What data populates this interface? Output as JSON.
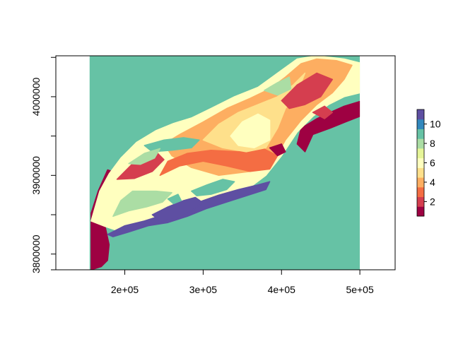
{
  "chart_data": {
    "type": "heatmap",
    "title": "",
    "xlabel": "",
    "ylabel": "",
    "xlim": [
      112000,
      545000
    ],
    "ylim": [
      3780000,
      4052000
    ],
    "raster_extent": {
      "x": [
        155000,
        500000
      ],
      "y": [
        3780000,
        4052000
      ]
    },
    "x_ticks": [
      {
        "value": 200000,
        "label": "2e+05"
      },
      {
        "value": 300000,
        "label": "3e+05"
      },
      {
        "value": 400000,
        "label": "4e+05"
      },
      {
        "value": 500000,
        "label": "5e+05"
      }
    ],
    "y_ticks": [
      {
        "value": 3800000,
        "label": "3800000"
      },
      {
        "value": 3900000,
        "label": "3900000"
      },
      {
        "value": 4000000,
        "label": "4000000"
      }
    ],
    "background_class": 9,
    "legend": {
      "placement": "right",
      "range": [
        1,
        11
      ],
      "ticks": [
        2,
        4,
        6,
        8,
        10
      ],
      "colors": [
        "#9E0142",
        "#D53E4F",
        "#F46D43",
        "#FDAE61",
        "#FEE08B",
        "#FFFFBF",
        "#E6F598",
        "#ABDDA4",
        "#66C2A5",
        "#3288BD",
        "#5E4FA2"
      ]
    },
    "regions": [
      {
        "class": 1,
        "polygon": [
          [
            157000,
            3780000
          ],
          [
            157000,
            3852000
          ],
          [
            166000,
            3880000
          ],
          [
            178000,
            3907000
          ],
          [
            184000,
            3905000
          ],
          [
            178000,
            3890000
          ],
          [
            171000,
            3860000
          ],
          [
            175000,
            3835000
          ],
          [
            180000,
            3812000
          ],
          [
            178000,
            3792000
          ],
          [
            170000,
            3784000
          ]
        ]
      },
      {
        "class": 1,
        "polygon": [
          [
            425000,
            3960000
          ],
          [
            445000,
            3972000
          ],
          [
            462000,
            3980000
          ],
          [
            480000,
            3988000
          ],
          [
            500000,
            3994000
          ],
          [
            500000,
            3975000
          ],
          [
            482000,
            3968000
          ],
          [
            462000,
            3960000
          ],
          [
            440000,
            3952000
          ],
          [
            430000,
            3930000
          ],
          [
            420000,
            3940000
          ]
        ]
      },
      {
        "class": 1,
        "polygon": [
          [
            260000,
            3952000
          ],
          [
            275000,
            3957000
          ],
          [
            290000,
            3962000
          ],
          [
            282000,
            3968000
          ],
          [
            265000,
            3964000
          ]
        ]
      },
      {
        "class": 6,
        "polygon": [
          [
            157000,
            3842000
          ],
          [
            168000,
            3880000
          ],
          [
            180000,
            3902000
          ],
          [
            195000,
            3922000
          ],
          [
            215000,
            3942000
          ],
          [
            240000,
            3957000
          ],
          [
            262000,
            3966000
          ],
          [
            285000,
            3973000
          ],
          [
            310000,
            3985000
          ],
          [
            340000,
            4000000
          ],
          [
            370000,
            4012000
          ],
          [
            395000,
            4030000
          ],
          [
            420000,
            4048000
          ],
          [
            445000,
            4052000
          ],
          [
            480000,
            4048000
          ],
          [
            500000,
            4043000
          ],
          [
            500000,
            4005000
          ],
          [
            480000,
            4000000
          ],
          [
            460000,
            3990000
          ],
          [
            440000,
            3975000
          ],
          [
            420000,
            3955000
          ],
          [
            400000,
            3925000
          ],
          [
            380000,
            3900000
          ],
          [
            340000,
            3870000
          ],
          [
            300000,
            3860000
          ],
          [
            260000,
            3852000
          ],
          [
            230000,
            3842000
          ],
          [
            205000,
            3835000
          ],
          [
            190000,
            3830000
          ],
          [
            175000,
            3835000
          ]
        ]
      },
      {
        "class": 8,
        "polygon": [
          [
            185000,
            3848000
          ],
          [
            195000,
            3868000
          ],
          [
            210000,
            3880000
          ],
          [
            240000,
            3880000
          ],
          [
            260000,
            3878000
          ],
          [
            248000,
            3866000
          ],
          [
            228000,
            3860000
          ],
          [
            205000,
            3855000
          ]
        ]
      },
      {
        "class": 4,
        "polygon": [
          [
            270000,
            3952000
          ],
          [
            300000,
            3968000
          ],
          [
            330000,
            3985000
          ],
          [
            360000,
            3998000
          ],
          [
            385000,
            4010000
          ],
          [
            405000,
            4025000
          ],
          [
            425000,
            4042000
          ],
          [
            445000,
            4048000
          ],
          [
            470000,
            4046000
          ],
          [
            490000,
            4040000
          ],
          [
            480000,
            4022000
          ],
          [
            465000,
            4005000
          ],
          [
            445000,
            3990000
          ],
          [
            425000,
            3970000
          ],
          [
            405000,
            3945000
          ],
          [
            390000,
            3918000
          ],
          [
            360000,
            3905000
          ],
          [
            320000,
            3900000
          ],
          [
            285000,
            3910000
          ],
          [
            260000,
            3925000
          ],
          [
            250000,
            3940000
          ]
        ]
      },
      {
        "class": 3,
        "polygon": [
          [
            245000,
            3900000
          ],
          [
            270000,
            3912000
          ],
          [
            300000,
            3918000
          ],
          [
            330000,
            3912000
          ],
          [
            360000,
            3905000
          ],
          [
            385000,
            3908000
          ],
          [
            395000,
            3925000
          ],
          [
            375000,
            3935000
          ],
          [
            345000,
            3930000
          ],
          [
            310000,
            3932000
          ],
          [
            280000,
            3928000
          ],
          [
            255000,
            3918000
          ]
        ]
      },
      {
        "class": 5,
        "polygon": [
          [
            300000,
            3945000
          ],
          [
            320000,
            3965000
          ],
          [
            345000,
            3980000
          ],
          [
            370000,
            3990000
          ],
          [
            395000,
            4000000
          ],
          [
            415000,
            4015000
          ],
          [
            430000,
            4030000
          ],
          [
            420000,
            4005000
          ],
          [
            405000,
            3985000
          ],
          [
            395000,
            3960000
          ],
          [
            380000,
            3935000
          ],
          [
            355000,
            3930000
          ],
          [
            325000,
            3935000
          ]
        ]
      },
      {
        "class": 6,
        "polygon": [
          [
            335000,
            3950000
          ],
          [
            350000,
            3968000
          ],
          [
            370000,
            3978000
          ],
          [
            385000,
            3970000
          ],
          [
            385000,
            3945000
          ],
          [
            365000,
            3935000
          ],
          [
            345000,
            3938000
          ]
        ]
      },
      {
        "class": 2,
        "polygon": [
          [
            190000,
            3895000
          ],
          [
            210000,
            3915000
          ],
          [
            240000,
            3930000
          ],
          [
            250000,
            3920000
          ],
          [
            235000,
            3905000
          ],
          [
            212000,
            3896000
          ]
        ]
      },
      {
        "class": 2,
        "polygon": [
          [
            400000,
            3995000
          ],
          [
            420000,
            4015000
          ],
          [
            445000,
            4030000
          ],
          [
            465000,
            4022000
          ],
          [
            450000,
            4000000
          ],
          [
            430000,
            3990000
          ],
          [
            410000,
            3985000
          ]
        ]
      },
      {
        "class": 9,
        "polygon": [
          [
            225000,
            3938000
          ],
          [
            250000,
            3945000
          ],
          [
            275000,
            3948000
          ],
          [
            295000,
            3945000
          ],
          [
            285000,
            3935000
          ],
          [
            260000,
            3932000
          ],
          [
            235000,
            3930000
          ]
        ]
      },
      {
        "class": 8,
        "polygon": [
          [
            378000,
            4008000
          ],
          [
            395000,
            4018000
          ],
          [
            410000,
            4025000
          ],
          [
            412000,
            4010000
          ],
          [
            395000,
            4002000
          ]
        ]
      },
      {
        "class": 11,
        "polygon": [
          [
            178000,
            3825000
          ],
          [
            200000,
            3836000
          ],
          [
            225000,
            3842000
          ],
          [
            250000,
            3850000
          ],
          [
            275000,
            3858000
          ],
          [
            300000,
            3868000
          ],
          [
            320000,
            3875000
          ],
          [
            345000,
            3882000
          ],
          [
            370000,
            3888000
          ],
          [
            385000,
            3892000
          ],
          [
            380000,
            3882000
          ],
          [
            355000,
            3874000
          ],
          [
            330000,
            3866000
          ],
          [
            305000,
            3858000
          ],
          [
            280000,
            3848000
          ],
          [
            255000,
            3840000
          ],
          [
            230000,
            3836000
          ],
          [
            205000,
            3828000
          ],
          [
            185000,
            3822000
          ]
        ]
      },
      {
        "class": 11,
        "polygon": [
          [
            235000,
            3850000
          ],
          [
            255000,
            3860000
          ],
          [
            275000,
            3868000
          ],
          [
            290000,
            3872000
          ],
          [
            300000,
            3865000
          ],
          [
            285000,
            3855000
          ],
          [
            265000,
            3845000
          ],
          [
            245000,
            3842000
          ]
        ]
      },
      {
        "class": 9,
        "polygon": [
          [
            285000,
            3880000
          ],
          [
            305000,
            3888000
          ],
          [
            325000,
            3895000
          ],
          [
            340000,
            3892000
          ],
          [
            330000,
            3882000
          ],
          [
            310000,
            3876000
          ],
          [
            292000,
            3874000
          ]
        ]
      },
      {
        "class": 9,
        "polygon": [
          [
            255000,
            3870000
          ],
          [
            268000,
            3876000
          ],
          [
            272000,
            3868000
          ],
          [
            262000,
            3864000
          ]
        ]
      },
      {
        "class": 8,
        "polygon": [
          [
            205000,
            3915000
          ],
          [
            225000,
            3928000
          ],
          [
            245000,
            3934000
          ],
          [
            238000,
            3922000
          ],
          [
            220000,
            3914000
          ]
        ]
      },
      {
        "class": 1,
        "polygon": [
          [
            385000,
            3935000
          ],
          [
            400000,
            3940000
          ],
          [
            405000,
            3930000
          ],
          [
            395000,
            3925000
          ]
        ]
      },
      {
        "class": 2,
        "polygon": [
          [
            440000,
            3980000
          ],
          [
            455000,
            3988000
          ],
          [
            465000,
            3980000
          ],
          [
            455000,
            3972000
          ]
        ]
      }
    ]
  }
}
